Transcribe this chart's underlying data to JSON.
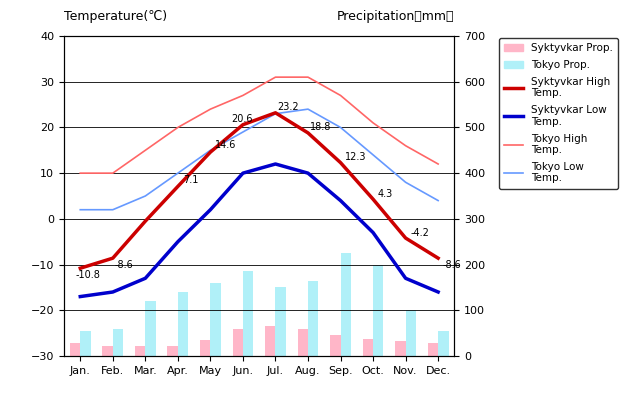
{
  "months": [
    "Jan.",
    "Feb.",
    "Mar.",
    "Apr.",
    "May",
    "Jun.",
    "Jul.",
    "Aug.",
    "Sep.",
    "Oct.",
    "Nov.",
    "Dec."
  ],
  "syktyvkar_high": [
    -10.8,
    -8.6,
    -0.5,
    7.1,
    14.6,
    20.6,
    23.2,
    18.8,
    12.3,
    4.3,
    -4.2,
    -8.6
  ],
  "syktyvkar_low": [
    -17,
    -16,
    -13,
    -5,
    2,
    10,
    12,
    10,
    4,
    -3,
    -13,
    -16
  ],
  "tokyo_high": [
    10,
    10,
    15,
    20,
    24,
    27,
    31,
    31,
    27,
    21,
    16,
    12
  ],
  "tokyo_low": [
    2,
    2,
    5,
    10,
    15,
    19,
    23,
    24,
    20,
    14,
    8,
    4
  ],
  "syktyvkar_precip": [
    28,
    22,
    22,
    22,
    35,
    58,
    65,
    58,
    45,
    38,
    32,
    28
  ],
  "tokyo_precip": [
    55,
    60,
    120,
    140,
    160,
    185,
    150,
    165,
    225,
    200,
    100,
    55
  ],
  "syktyvkar_high_color": "#cc0000",
  "syktyvkar_low_color": "#0000cc",
  "tokyo_high_color": "#ff6666",
  "tokyo_low_color": "#6699ff",
  "syktyvkar_precip_color": "#ffb6c8",
  "tokyo_precip_color": "#b0f0f8",
  "title_left": "Temperature(℃)",
  "title_right": "Precipitation（mm）",
  "ylim_temp": [
    -30,
    40
  ],
  "ylim_precip": [
    0,
    700
  ],
  "plot_bg_color": "#c8c8c8",
  "annot_indices": [
    0,
    1,
    2,
    3,
    4,
    5,
    6,
    7,
    8,
    9,
    10,
    11
  ],
  "annot_show": [
    true,
    true,
    false,
    true,
    true,
    true,
    true,
    true,
    true,
    true,
    true,
    true
  ]
}
